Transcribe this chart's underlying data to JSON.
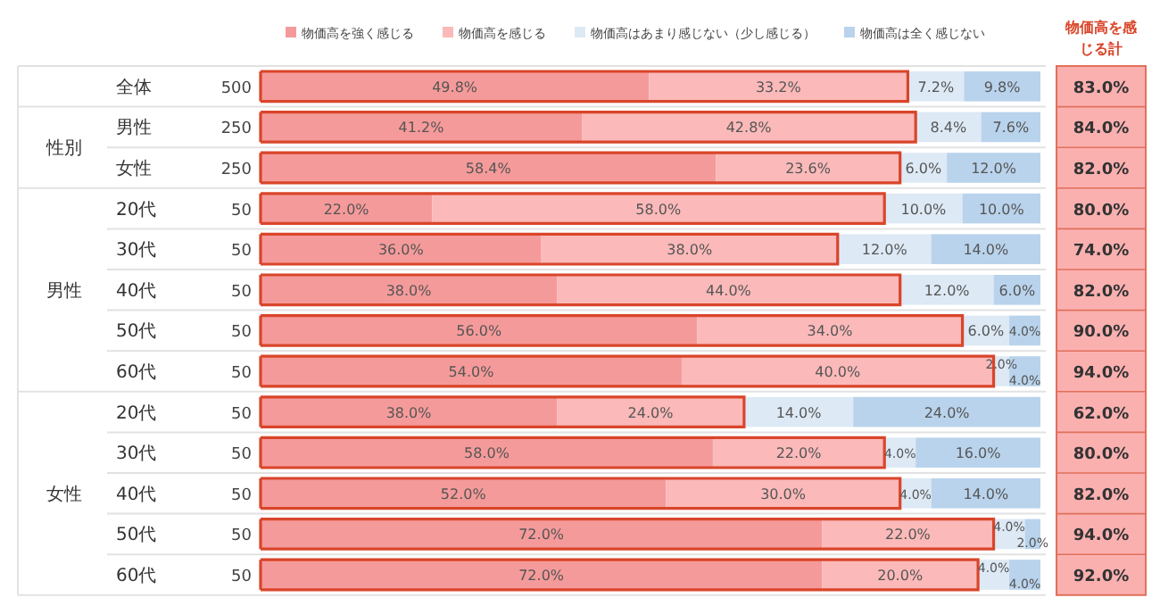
{
  "chart_data": {
    "type": "bar",
    "orientation": "horizontal",
    "stacked": true,
    "legend": "top",
    "xlim": [
      0,
      100
    ],
    "categories": [
      "全体",
      "男性",
      "女性",
      "20代",
      "30代",
      "40代",
      "50代",
      "60代",
      "20代",
      "30代",
      "40代",
      "50代",
      "60代"
    ],
    "series": [
      {
        "name": "物価高を強く感じる",
        "color": "#f59a9a",
        "values": [
          49.8,
          41.2,
          58.4,
          22,
          36,
          38,
          56,
          54,
          38,
          58,
          52,
          72,
          72
        ],
        "value_labels": [
          "49.8%",
          "41.2%",
          "58.4%",
          "22.0%",
          "36.0%",
          "38.0%",
          "56.0%",
          "54.0%",
          "38.0%",
          "58.0%",
          "52.0%",
          "72.0%",
          "72.0%"
        ]
      },
      {
        "name": "物価高を感じる",
        "color": "#fbb9b9",
        "values": [
          33.2,
          42.8,
          23.6,
          58,
          38,
          44,
          34,
          40,
          24,
          22,
          30,
          22,
          20
        ],
        "value_labels": [
          "33.2%",
          "42.8%",
          "23.6%",
          "58.0%",
          "38.0%",
          "44.0%",
          "34.0%",
          "40.0%",
          "24.0%",
          "22.0%",
          "30.0%",
          "22.0%",
          "20.0%"
        ]
      },
      {
        "name": "物価高はあまり感じない（少し感じる）",
        "color": "#dde9f5",
        "values": [
          7.2,
          8.4,
          6,
          10,
          12,
          12,
          6,
          2,
          14,
          4,
          4,
          4,
          4
        ],
        "value_labels": [
          "7.2%",
          "8.4%",
          "6.0%",
          "10.0%",
          "12.0%",
          "12.0%",
          "6.0%",
          "2.0%",
          "14.0%",
          "4.0%",
          "4.0%",
          "4.0%",
          "4.0%"
        ]
      },
      {
        "name": "物価高は全く感じない",
        "color": "#b9d3ec",
        "values": [
          9.8,
          7.6,
          12,
          10,
          14,
          6,
          4,
          4,
          24,
          16,
          14,
          2,
          4
        ],
        "value_labels": [
          "9.8%",
          "7.6%",
          "12.0%",
          "10.0%",
          "14.0%",
          "6.0%",
          "4.0%",
          "4.0%",
          "24.0%",
          "16.0%",
          "14.0%",
          "2.0%",
          "4.0%"
        ]
      }
    ],
    "annotations": [
      "物価高を感じる計",
      "性別",
      "男性",
      "女性",
      "500",
      "250",
      "250",
      "50",
      "50",
      "50",
      "50",
      "50",
      "50",
      "50",
      "50",
      "50",
      "50",
      "83.0%",
      "84.0%",
      "82.0%",
      "80.0%",
      "74.0%",
      "82.0%",
      "90.0%",
      "94.0%",
      "62.0%",
      "80.0%",
      "82.0%",
      "94.0%",
      "92.0%"
    ]
  }
}
